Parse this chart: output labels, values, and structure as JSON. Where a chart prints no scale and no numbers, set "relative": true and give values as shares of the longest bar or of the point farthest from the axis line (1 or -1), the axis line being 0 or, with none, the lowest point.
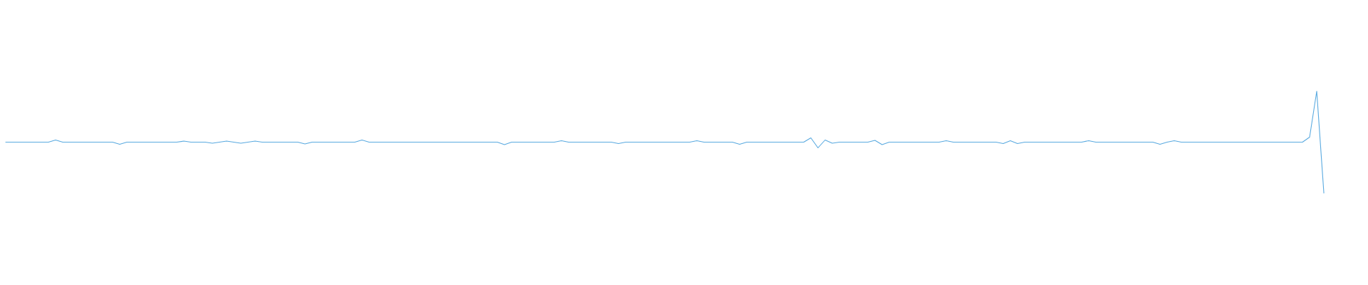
{
  "chart_data": {
    "type": "line",
    "relative": true,
    "categories": [
      null,
      null,
      null,
      null,
      null,
      null,
      null,
      null,
      null,
      null,
      null,
      null,
      null,
      null,
      null,
      null,
      null,
      null,
      null,
      null,
      null,
      null,
      null,
      null,
      null,
      null,
      null,
      null,
      null,
      null,
      null,
      null,
      null,
      null,
      null,
      null,
      null,
      null,
      null,
      null,
      null,
      null,
      null,
      null,
      null,
      null,
      null,
      null,
      null,
      null,
      null,
      null,
      null,
      null,
      null,
      null,
      null,
      null,
      null,
      null,
      null,
      null,
      null,
      null,
      null,
      null,
      null,
      null,
      null,
      null,
      null,
      null,
      null,
      null,
      null,
      null,
      null,
      null,
      null,
      null,
      null,
      null,
      null,
      null,
      null,
      null,
      null,
      null,
      null,
      null,
      null,
      null,
      null,
      null,
      null,
      null,
      null,
      null,
      null,
      null,
      null,
      null,
      null,
      null,
      null,
      null,
      null,
      null,
      null,
      null,
      null,
      null,
      null,
      null,
      null,
      null,
      null,
      null,
      null,
      null,
      null,
      null,
      null,
      null,
      null,
      null,
      null,
      null,
      null,
      null,
      null,
      null,
      null,
      null,
      null,
      null,
      null,
      null,
      null,
      null,
      null,
      null,
      null,
      null,
      null,
      null,
      null,
      null,
      null,
      null,
      null,
      null,
      null,
      null,
      null,
      null,
      null,
      null,
      null,
      null,
      null,
      null,
      null,
      null,
      null,
      null,
      null,
      null,
      null,
      null,
      null,
      null,
      null,
      null,
      null,
      null,
      null,
      null,
      null,
      null,
      null,
      null,
      null,
      null,
      null,
      null
    ],
    "series": [
      {
        "color": "#5aaae0",
        "values": [
          0.5,
          0.5,
          0.5,
          0.5,
          0.5,
          0.5,
          0.5,
          0.521,
          0.5,
          0.5,
          0.5,
          0.5,
          0.5,
          0.5,
          0.5,
          0.5,
          0.479,
          0.5,
          0.5,
          0.5,
          0.5,
          0.5,
          0.5,
          0.5,
          0.5,
          0.51,
          0.5,
          0.5,
          0.5,
          0.49,
          0.5,
          0.51,
          0.5,
          0.49,
          0.5,
          0.51,
          0.5,
          0.5,
          0.5,
          0.5,
          0.5,
          0.5,
          0.483,
          0.5,
          0.5,
          0.5,
          0.5,
          0.5,
          0.5,
          0.5,
          0.521,
          0.5,
          0.5,
          0.5,
          0.5,
          0.5,
          0.5,
          0.5,
          0.5,
          0.5,
          0.5,
          0.5,
          0.5,
          0.5,
          0.5,
          0.5,
          0.5,
          0.5,
          0.5,
          0.5,
          0.476,
          0.5,
          0.5,
          0.5,
          0.5,
          0.5,
          0.5,
          0.5,
          0.514,
          0.5,
          0.5,
          0.5,
          0.5,
          0.5,
          0.5,
          0.5,
          0.486,
          0.5,
          0.5,
          0.5,
          0.5,
          0.5,
          0.5,
          0.5,
          0.5,
          0.5,
          0.5,
          0.514,
          0.5,
          0.5,
          0.5,
          0.5,
          0.5,
          0.479,
          0.5,
          0.5,
          0.5,
          0.5,
          0.5,
          0.5,
          0.5,
          0.5,
          0.5,
          0.542,
          0.444,
          0.521,
          0.49,
          0.5,
          0.5,
          0.5,
          0.5,
          0.5,
          0.517,
          0.476,
          0.5,
          0.5,
          0.5,
          0.5,
          0.5,
          0.5,
          0.5,
          0.5,
          0.514,
          0.5,
          0.5,
          0.5,
          0.5,
          0.5,
          0.5,
          0.5,
          0.486,
          0.514,
          0.486,
          0.5,
          0.5,
          0.5,
          0.5,
          0.5,
          0.5,
          0.5,
          0.5,
          0.5,
          0.514,
          0.5,
          0.5,
          0.5,
          0.5,
          0.5,
          0.5,
          0.5,
          0.5,
          0.5,
          0.479,
          0.5,
          0.514,
          0.5,
          0.5,
          0.5,
          0.5,
          0.5,
          0.5,
          0.5,
          0.5,
          0.5,
          0.5,
          0.5,
          0.5,
          0.5,
          0.5,
          0.5,
          0.5,
          0.5,
          0.5,
          0.549,
          1,
          0
        ]
      }
    ]
  }
}
